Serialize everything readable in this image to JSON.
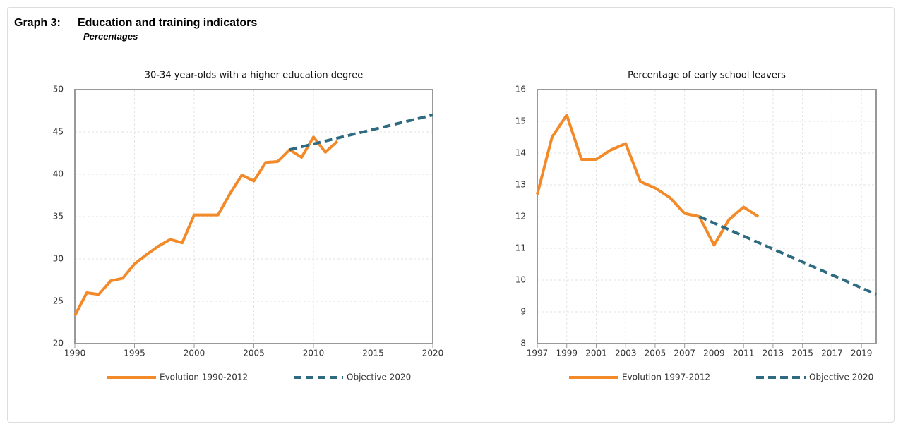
{
  "header": {
    "label": "Graph 3:",
    "title": "Education and training indicators",
    "subtitle": "Percentages"
  },
  "chart_data": [
    {
      "type": "line",
      "title": "30-34 year-olds with a higher education degree",
      "xlim": [
        1990,
        2020
      ],
      "xticks": [
        1990,
        1995,
        2000,
        2005,
        2010,
        2015,
        2020
      ],
      "ylim": [
        20,
        50
      ],
      "yticks": [
        20,
        25,
        30,
        35,
        40,
        45,
        50
      ],
      "grid": true,
      "series": [
        {
          "name": "Evolution 1990-2012",
          "color": "#f28a2a",
          "dashed": false,
          "x": [
            1990,
            1991,
            1992,
            1993,
            1994,
            1995,
            1996,
            1997,
            1998,
            1999,
            2000,
            2001,
            2002,
            2003,
            2004,
            2005,
            2006,
            2007,
            2008,
            2009,
            2010,
            2011,
            2012
          ],
          "values": [
            23.3,
            26.0,
            25.8,
            27.4,
            27.7,
            29.4,
            30.5,
            31.5,
            32.3,
            31.9,
            35.2,
            35.2,
            35.2,
            37.7,
            39.9,
            39.2,
            41.4,
            41.5,
            42.9,
            42.0,
            44.4,
            42.6,
            43.9
          ]
        },
        {
          "name": "Objective 2020",
          "color": "#2e6a80",
          "dashed": true,
          "x": [
            2008,
            2020
          ],
          "values": [
            42.9,
            47.0
          ]
        }
      ]
    },
    {
      "type": "line",
      "title": "Percentage of early school leavers",
      "xlim": [
        1997,
        2020
      ],
      "xticks": [
        1997,
        1999,
        2001,
        2003,
        2005,
        2007,
        2009,
        2011,
        2013,
        2015,
        2017,
        2019
      ],
      "ylim": [
        8,
        16
      ],
      "yticks": [
        8,
        9,
        10,
        11,
        12,
        13,
        14,
        15,
        16
      ],
      "grid": true,
      "series": [
        {
          "name": "Evolution 1997-2012",
          "color": "#f28a2a",
          "dashed": false,
          "x": [
            1997,
            1998,
            1999,
            2000,
            2001,
            2002,
            2003,
            2004,
            2005,
            2006,
            2007,
            2008,
            2009,
            2010,
            2011,
            2012
          ],
          "values": [
            12.7,
            14.5,
            15.2,
            13.8,
            13.8,
            14.1,
            14.3,
            13.1,
            12.9,
            12.6,
            12.1,
            12.0,
            11.1,
            11.9,
            12.3,
            12.0
          ]
        },
        {
          "name": "Objective 2020",
          "color": "#2e6a80",
          "dashed": true,
          "x": [
            2008,
            2020
          ],
          "values": [
            12.0,
            9.55
          ]
        }
      ]
    }
  ]
}
